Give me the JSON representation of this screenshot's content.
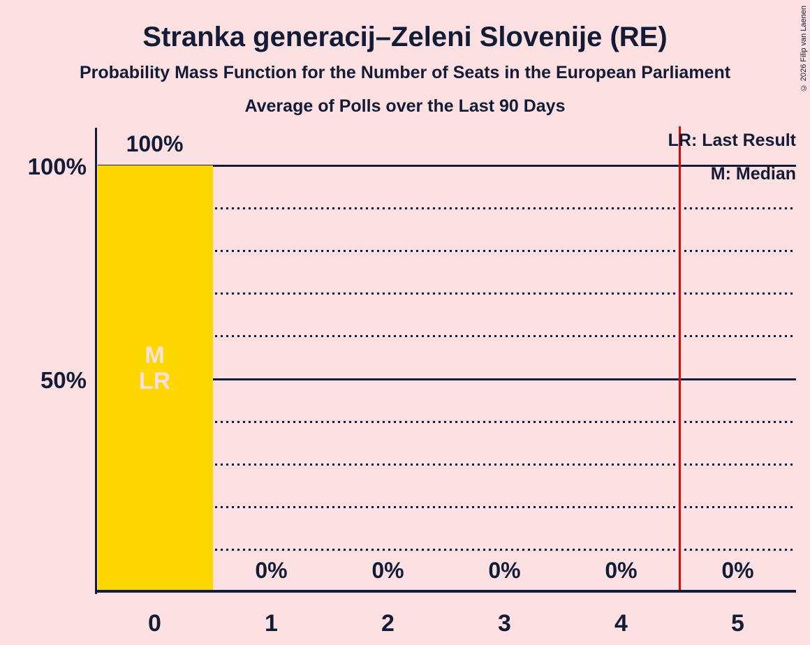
{
  "title": "Stranka generacij–Zeleni Slovenije (RE)",
  "subtitle": "Probability Mass Function for the Number of Seats in the European Parliament",
  "subsubtitle": "Average of Polls over the Last 90 Days",
  "copyright": "© 2026 Filip van Laenen",
  "legend": {
    "last_result": "LR: Last Result",
    "median": "M: Median"
  },
  "colors": {
    "background": "#FDE0E2",
    "ink": "#121C36",
    "bar": "#FFD700",
    "last_result_line": "#F00000",
    "bar_annotation_text": "#FDE0E2"
  },
  "y_axis": {
    "tick_labels": [
      {
        "label": "100%",
        "value": 100
      },
      {
        "label": "50%",
        "value": 50
      }
    ]
  },
  "chart_data": {
    "type": "bar",
    "title": "Stranka generacij–Zeleni Slovenije (RE)",
    "categories": [
      "0",
      "1",
      "2",
      "3",
      "4",
      "5"
    ],
    "values": [
      100,
      0,
      0,
      0,
      0,
      0
    ],
    "value_labels": [
      "100%",
      "0%",
      "0%",
      "0%",
      "0%",
      "0%"
    ],
    "xlabel": "",
    "ylabel": "",
    "ylim": [
      0,
      100
    ],
    "dotted_gridlines_pct": [
      10,
      20,
      30,
      40,
      60,
      70,
      80,
      90
    ],
    "solid_gridlines_pct": [
      50,
      100
    ],
    "legend_position": "top-right",
    "median_seat": "0",
    "last_result_seat": "0",
    "last_result_vertical_line_x": 4.5,
    "bar_annotations": [
      {
        "seat": "0",
        "lines": [
          "M",
          "LR"
        ]
      }
    ]
  }
}
